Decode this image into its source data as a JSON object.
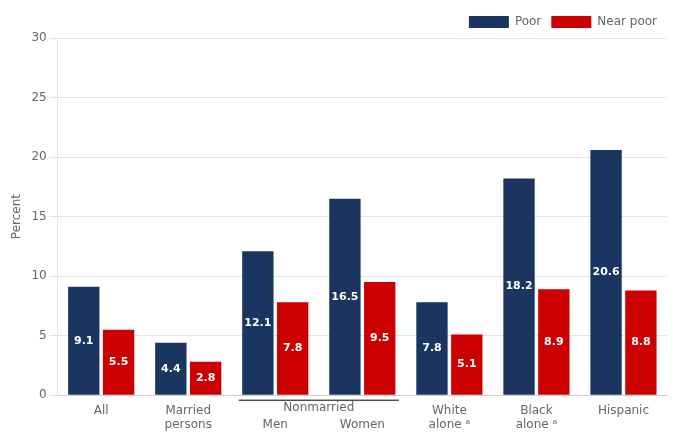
{
  "chart_data": {
    "type": "bar",
    "categories": [
      "All",
      "Married\npersons",
      "Men",
      "Women",
      "White\nalone ᵃ",
      "Black\nalone ᵃ",
      "Hispanic"
    ],
    "series": [
      {
        "name": "Poor",
        "color": "#1a3560",
        "values": [
          9.1,
          4.4,
          12.1,
          16.5,
          7.8,
          18.2,
          20.6
        ]
      },
      {
        "name": "Near poor",
        "color": "#cc0000",
        "values": [
          5.5,
          2.8,
          7.8,
          9.5,
          5.1,
          8.9,
          8.8
        ]
      }
    ],
    "ylabel": "Percent",
    "ylim": [
      0,
      30
    ],
    "yticks": [
      0,
      5,
      10,
      15,
      20,
      25,
      30
    ],
    "grid": true,
    "legend": "upper right",
    "data_labels": true,
    "annotations": [
      {
        "text": "Nonmarried",
        "categories": [
          "Men",
          "Women"
        ]
      }
    ]
  }
}
